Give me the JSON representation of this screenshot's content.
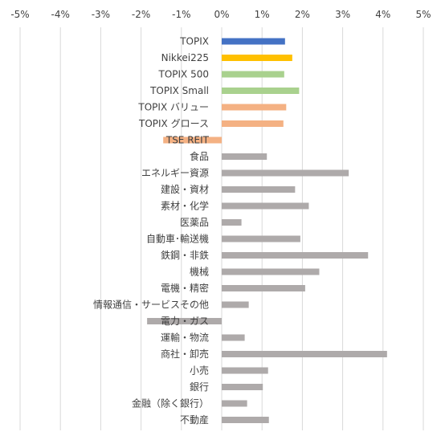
{
  "chart_data": {
    "type": "bar",
    "orientation": "horizontal",
    "title": "",
    "xlabel": "",
    "ylabel": "",
    "xlim": [
      -5,
      5
    ],
    "x_ticks": [
      -5,
      -4,
      -3,
      -2,
      -1,
      0,
      1,
      2,
      3,
      4,
      5
    ],
    "x_tick_labels": [
      "-5%",
      "-4%",
      "-3%",
      "-2%",
      "-1%",
      "0%",
      "1%",
      "2%",
      "3%",
      "4%",
      "5%"
    ],
    "x_axis_position": "top",
    "grid": "vertical",
    "legend": "none",
    "categories": [
      "TOPIX",
      "Nikkei225",
      "TOPIX 500",
      "TOPIX Small",
      "TOPIX バリュー",
      "TOPIX グロース",
      "TSE REIT",
      "食品",
      "エネルギー資源",
      "建設・資材",
      "素材・化学",
      "医薬品",
      "自動車･輸送機",
      "鉄鋼・非鉄",
      "機械",
      "電機・精密",
      "情報通信・サービスその他",
      "電力・ガス",
      "運輸・物流",
      "商社・卸売",
      "小売",
      "銀行",
      "金融（除く銀行）",
      "不動産"
    ],
    "values": [
      1.57,
      1.75,
      1.55,
      1.92,
      1.6,
      1.53,
      -1.45,
      1.12,
      3.15,
      1.82,
      2.16,
      0.49,
      1.95,
      3.63,
      2.42,
      2.07,
      0.67,
      -1.85,
      0.57,
      4.1,
      1.15,
      1.02,
      0.63,
      1.17
    ],
    "colors": [
      "#4472c4",
      "#ffc000",
      "#a9d18e",
      "#a9d18e",
      "#f4b183",
      "#f4b183",
      "#f4b183",
      "#aeaaaa",
      "#aeaaaa",
      "#aeaaaa",
      "#aeaaaa",
      "#aeaaaa",
      "#aeaaaa",
      "#aeaaaa",
      "#aeaaaa",
      "#aeaaaa",
      "#aeaaaa",
      "#aeaaaa",
      "#aeaaaa",
      "#aeaaaa",
      "#aeaaaa",
      "#aeaaaa",
      "#aeaaaa",
      "#aeaaaa"
    ],
    "grid_color": "#d9d9d9"
  }
}
